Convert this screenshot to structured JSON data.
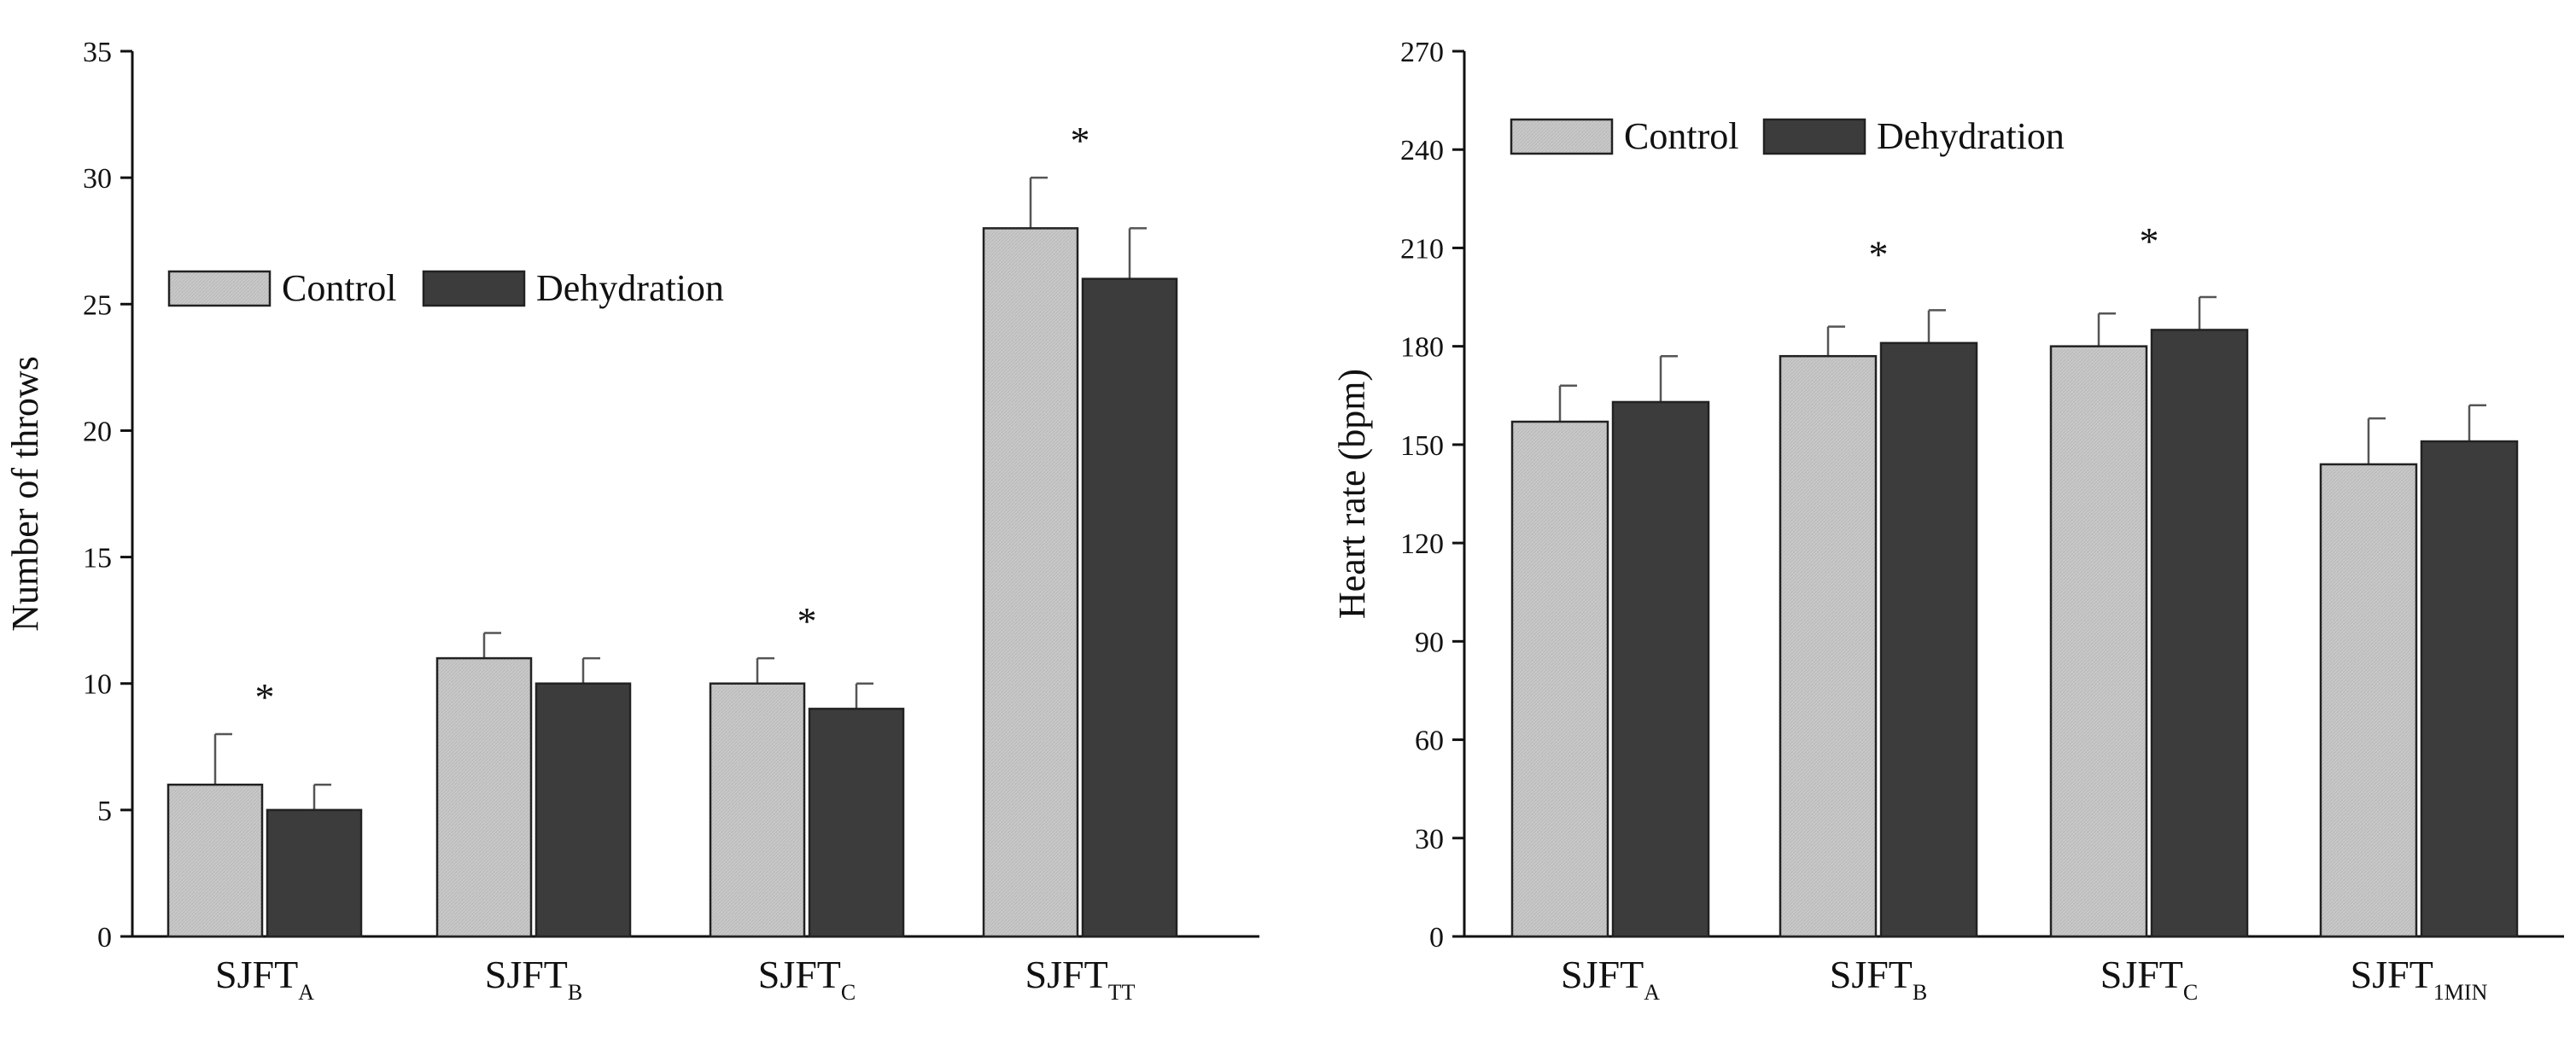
{
  "colors": {
    "control": "#c8c8c8",
    "dehydration": "#3c3c3c",
    "axis": "#111111",
    "stroke": "#222222"
  },
  "chart_data": [
    {
      "type": "bar",
      "title": "",
      "xlabel": "",
      "ylabel": "Number of throws",
      "ylim": [
        0,
        35
      ],
      "yticks": [
        0,
        5,
        10,
        15,
        20,
        25,
        30,
        35
      ],
      "tick_labels": [
        "0",
        "5",
        "10",
        "15",
        "20",
        "25",
        "30",
        "35"
      ],
      "categories": [
        {
          "base": "SJFT",
          "sub": "A"
        },
        {
          "base": "SJFT",
          "sub": "B"
        },
        {
          "base": "SJFT",
          "sub": "C"
        },
        {
          "base": "SJFT",
          "sub": "TT"
        }
      ],
      "series": [
        {
          "name": "Control",
          "values": [
            6,
            11,
            10,
            28
          ],
          "errors": [
            2,
            1,
            1,
            2
          ]
        },
        {
          "name": "Dehydration",
          "values": [
            5,
            10,
            9,
            26
          ],
          "errors": [
            1,
            1,
            1,
            2
          ]
        }
      ],
      "significance": [
        "*",
        "",
        "*",
        "*"
      ],
      "legend": [
        "Control",
        "Dehydration"
      ],
      "legend_position": "upper-left"
    },
    {
      "type": "bar",
      "title": "",
      "xlabel": "",
      "ylabel": "Heart rate (bpm)",
      "ylim": [
        0,
        270
      ],
      "yticks": [
        0,
        30,
        60,
        90,
        120,
        150,
        180,
        210,
        240,
        270
      ],
      "tick_labels": [
        "0",
        "30",
        "60",
        "90",
        "120",
        "150",
        "180",
        "210",
        "240",
        "270"
      ],
      "categories": [
        {
          "base": "SJFT",
          "sub": "A"
        },
        {
          "base": "SJFT",
          "sub": "B"
        },
        {
          "base": "SJFT",
          "sub": "C"
        },
        {
          "base": "SJFT",
          "sub": "1MIN"
        }
      ],
      "series": [
        {
          "name": "Control",
          "values": [
            157,
            177,
            180,
            144
          ],
          "errors": [
            11,
            9,
            10,
            14
          ]
        },
        {
          "name": "Dehydration",
          "values": [
            163,
            181,
            185,
            151
          ],
          "errors": [
            14,
            10,
            10,
            11
          ]
        }
      ],
      "significance": [
        "",
        "*",
        "*",
        ""
      ],
      "legend": [
        "Control",
        "Dehydration"
      ],
      "legend_position": "top-left"
    }
  ]
}
